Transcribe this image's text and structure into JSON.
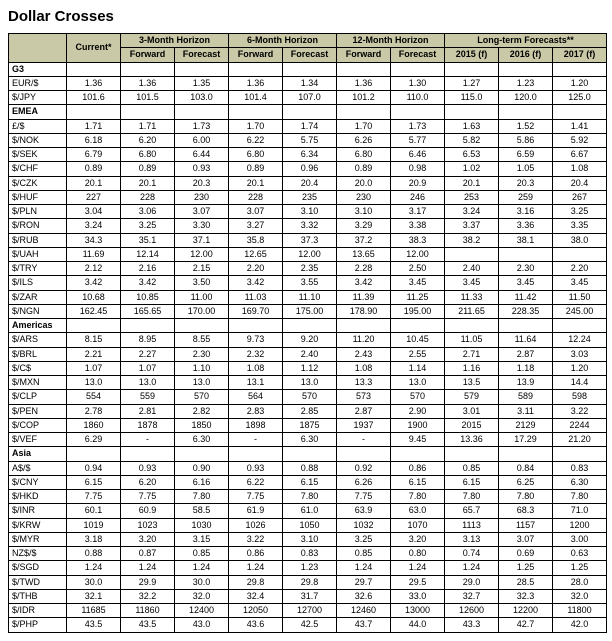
{
  "title": "Dollar Crosses",
  "headers": {
    "current": "Current*",
    "groups": [
      "3-Month Horizon",
      "6-Month Horizon",
      "12-Month Horizon",
      "Long-term Forecasts**"
    ],
    "fwd": "Forward",
    "fct": "Forecast",
    "years": [
      "2015 (f)",
      "2016 (f)",
      "2017 (f)"
    ]
  },
  "colors": {
    "header_bg": "#cac9a7",
    "border": "#000000",
    "text": "#000000",
    "background": "#ffffff"
  },
  "sections": [
    {
      "name": "G3",
      "rows": [
        {
          "label": "EUR/$",
          "v": [
            "1.36",
            "1.36",
            "1.35",
            "1.36",
            "1.34",
            "1.36",
            "1.30",
            "1.27",
            "1.23",
            "1.20"
          ]
        },
        {
          "label": "$/JPY",
          "v": [
            "101.6",
            "101.5",
            "103.0",
            "101.4",
            "107.0",
            "101.2",
            "110.0",
            "115.0",
            "120.0",
            "125.0"
          ]
        }
      ]
    },
    {
      "name": "EMEA",
      "rows": [
        {
          "label": "£/$",
          "v": [
            "1.71",
            "1.71",
            "1.73",
            "1.70",
            "1.74",
            "1.70",
            "1.73",
            "1.63",
            "1.52",
            "1.41"
          ]
        },
        {
          "label": "$/NOK",
          "v": [
            "6.18",
            "6.20",
            "6.00",
            "6.22",
            "5.75",
            "6.26",
            "5.77",
            "5.82",
            "5.86",
            "5.92"
          ]
        },
        {
          "label": "$/SEK",
          "v": [
            "6.79",
            "6.80",
            "6.44",
            "6.80",
            "6.34",
            "6.80",
            "6.46",
            "6.53",
            "6.59",
            "6.67"
          ]
        },
        {
          "label": "$/CHF",
          "v": [
            "0.89",
            "0.89",
            "0.93",
            "0.89",
            "0.96",
            "0.89",
            "0.98",
            "1.02",
            "1.05",
            "1.08"
          ]
        },
        {
          "label": "$/CZK",
          "v": [
            "20.1",
            "20.1",
            "20.3",
            "20.1",
            "20.4",
            "20.0",
            "20.9",
            "20.1",
            "20.3",
            "20.4"
          ]
        },
        {
          "label": "$/HUF",
          "v": [
            "227",
            "228",
            "230",
            "228",
            "235",
            "230",
            "246",
            "253",
            "259",
            "267"
          ]
        },
        {
          "label": "$/PLN",
          "v": [
            "3.04",
            "3.06",
            "3.07",
            "3.07",
            "3.10",
            "3.10",
            "3.17",
            "3.24",
            "3.16",
            "3.25"
          ]
        },
        {
          "label": "$/RON",
          "v": [
            "3.24",
            "3.25",
            "3.30",
            "3.27",
            "3.32",
            "3.29",
            "3.38",
            "3.37",
            "3.36",
            "3.35"
          ]
        },
        {
          "label": "$/RUB",
          "v": [
            "34.3",
            "35.1",
            "37.1",
            "35.8",
            "37.3",
            "37.2",
            "38.3",
            "38.2",
            "38.1",
            "38.0"
          ]
        },
        {
          "label": "$/UAH",
          "v": [
            "11.69",
            "12.14",
            "12.00",
            "12.65",
            "12.00",
            "13.65",
            "12.00",
            "",
            "",
            ""
          ]
        },
        {
          "label": "$/TRY",
          "v": [
            "2.12",
            "2.16",
            "2.15",
            "2.20",
            "2.35",
            "2.28",
            "2.50",
            "2.40",
            "2.30",
            "2.20"
          ]
        },
        {
          "label": "$/ILS",
          "v": [
            "3.42",
            "3.42",
            "3.50",
            "3.42",
            "3.55",
            "3.42",
            "3.45",
            "3.45",
            "3.45",
            "3.45"
          ]
        },
        {
          "label": "$/ZAR",
          "v": [
            "10.68",
            "10.85",
            "11.00",
            "11.03",
            "11.10",
            "11.39",
            "11.25",
            "11.33",
            "11.42",
            "11.50"
          ]
        },
        {
          "label": "$/NGN",
          "v": [
            "162.45",
            "165.65",
            "170.00",
            "169.70",
            "175.00",
            "178.90",
            "195.00",
            "211.65",
            "228.35",
            "245.00"
          ]
        }
      ]
    },
    {
      "name": "Americas",
      "rows": [
        {
          "label": "$/ARS",
          "v": [
            "8.15",
            "8.95",
            "8.55",
            "9.73",
            "9.20",
            "11.20",
            "10.45",
            "11.05",
            "11.64",
            "12.24"
          ]
        },
        {
          "label": "$/BRL",
          "v": [
            "2.21",
            "2.27",
            "2.30",
            "2.32",
            "2.40",
            "2.43",
            "2.55",
            "2.71",
            "2.87",
            "3.03"
          ]
        },
        {
          "label": "$/C$",
          "v": [
            "1.07",
            "1.07",
            "1.10",
            "1.08",
            "1.12",
            "1.08",
            "1.14",
            "1.16",
            "1.18",
            "1.20"
          ]
        },
        {
          "label": "$/MXN",
          "v": [
            "13.0",
            "13.0",
            "13.0",
            "13.1",
            "13.0",
            "13.3",
            "13.0",
            "13.5",
            "13.9",
            "14.4"
          ]
        },
        {
          "label": "$/CLP",
          "v": [
            "554",
            "559",
            "570",
            "564",
            "570",
            "573",
            "570",
            "579",
            "589",
            "598"
          ]
        },
        {
          "label": "$/PEN",
          "v": [
            "2.78",
            "2.81",
            "2.82",
            "2.83",
            "2.85",
            "2.87",
            "2.90",
            "3.01",
            "3.11",
            "3.22"
          ]
        },
        {
          "label": "$/COP",
          "v": [
            "1860",
            "1878",
            "1850",
            "1898",
            "1875",
            "1937",
            "1900",
            "2015",
            "2129",
            "2244"
          ]
        },
        {
          "label": "$/VEF",
          "v": [
            "6.29",
            "-",
            "6.30",
            "-",
            "6.30",
            "-",
            "9.45",
            "13.36",
            "17.29",
            "21.20"
          ]
        }
      ]
    },
    {
      "name": "Asia",
      "rows": [
        {
          "label": "A$/$",
          "v": [
            "0.94",
            "0.93",
            "0.90",
            "0.93",
            "0.88",
            "0.92",
            "0.86",
            "0.85",
            "0.84",
            "0.83"
          ]
        },
        {
          "label": "$/CNY",
          "v": [
            "6.15",
            "6.20",
            "6.16",
            "6.22",
            "6.15",
            "6.26",
            "6.15",
            "6.15",
            "6.25",
            "6.30"
          ]
        },
        {
          "label": "$/HKD",
          "v": [
            "7.75",
            "7.75",
            "7.80",
            "7.75",
            "7.80",
            "7.75",
            "7.80",
            "7.80",
            "7.80",
            "7.80"
          ]
        },
        {
          "label": "$/INR",
          "v": [
            "60.1",
            "60.9",
            "58.5",
            "61.9",
            "61.0",
            "63.9",
            "63.0",
            "65.7",
            "68.3",
            "71.0"
          ]
        },
        {
          "label": "$/KRW",
          "v": [
            "1019",
            "1023",
            "1030",
            "1026",
            "1050",
            "1032",
            "1070",
            "1113",
            "1157",
            "1200"
          ]
        },
        {
          "label": "$/MYR",
          "v": [
            "3.18",
            "3.20",
            "3.15",
            "3.22",
            "3.10",
            "3.25",
            "3.20",
            "3.13",
            "3.07",
            "3.00"
          ]
        },
        {
          "label": "NZ$/$",
          "v": [
            "0.88",
            "0.87",
            "0.85",
            "0.86",
            "0.83",
            "0.85",
            "0.80",
            "0.74",
            "0.69",
            "0.63"
          ]
        },
        {
          "label": "$/SGD",
          "v": [
            "1.24",
            "1.24",
            "1.24",
            "1.24",
            "1.23",
            "1.24",
            "1.24",
            "1.24",
            "1.25",
            "1.25"
          ]
        },
        {
          "label": "$/TWD",
          "v": [
            "30.0",
            "29.9",
            "30.0",
            "29.8",
            "29.8",
            "29.7",
            "29.5",
            "29.0",
            "28.5",
            "28.0"
          ]
        },
        {
          "label": "$/THB",
          "v": [
            "32.1",
            "32.2",
            "32.0",
            "32.4",
            "31.7",
            "32.6",
            "33.0",
            "32.7",
            "32.3",
            "32.0"
          ]
        },
        {
          "label": "$/IDR",
          "v": [
            "11685",
            "11860",
            "12400",
            "12050",
            "12700",
            "12460",
            "13000",
            "12600",
            "12200",
            "11800"
          ]
        },
        {
          "label": "$/PHP",
          "v": [
            "43.5",
            "43.5",
            "43.0",
            "43.6",
            "42.5",
            "43.7",
            "44.0",
            "43.3",
            "42.7",
            "42.0"
          ]
        }
      ]
    }
  ]
}
